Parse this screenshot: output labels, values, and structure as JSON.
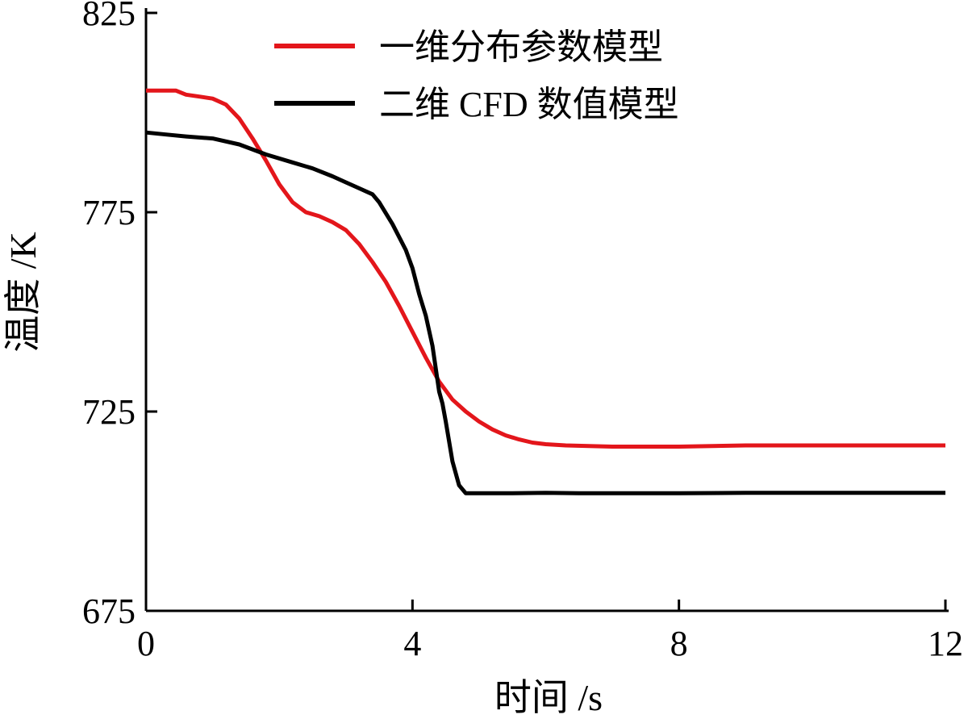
{
  "chart_data": {
    "type": "line",
    "title": "",
    "xlabel": "时间 /s",
    "ylabel": "温度 /K",
    "xlim": [
      0,
      12
    ],
    "ylim": [
      675,
      825
    ],
    "xticks": [
      "0",
      "4",
      "8",
      "12"
    ],
    "yticks": [
      "675",
      "725",
      "775",
      "825"
    ],
    "grid": false,
    "legend_position": "top-right",
    "series": [
      {
        "name": "一维分布参数模型",
        "color": "#e3161b",
        "x": [
          0,
          0.2,
          0.45,
          0.6,
          0.8,
          1.0,
          1.2,
          1.4,
          1.6,
          1.8,
          2.0,
          2.2,
          2.4,
          2.6,
          2.8,
          3.0,
          3.2,
          3.4,
          3.6,
          3.8,
          4.0,
          4.2,
          4.4,
          4.6,
          4.8,
          5.0,
          5.2,
          5.4,
          5.6,
          5.8,
          6.0,
          6.3,
          7.0,
          8.0,
          9.0,
          10.0,
          11.0,
          12.0
        ],
        "y": [
          805.5,
          805.5,
          805.5,
          804.5,
          804,
          803.5,
          802,
          798.5,
          793.5,
          788,
          782,
          777.5,
          775,
          774,
          772.5,
          770.5,
          767,
          762.5,
          757.5,
          751.5,
          745,
          738.5,
          732.5,
          728,
          725,
          722.5,
          720.5,
          719,
          718,
          717.2,
          716.8,
          716.5,
          716.2,
          716.2,
          716.5,
          716.5,
          716.5,
          716.5
        ]
      },
      {
        "name": "二维 CFD 数值模型",
        "color": "#000000",
        "x": [
          0,
          0.3,
          0.6,
          1.0,
          1.4,
          1.8,
          2.2,
          2.5,
          2.8,
          3.0,
          3.2,
          3.4,
          3.5,
          3.7,
          3.9,
          4.0,
          4.1,
          4.2,
          4.3,
          4.4,
          4.45,
          4.5,
          4.6,
          4.7,
          4.8,
          5.0,
          5.5,
          6.0,
          6.5,
          7.0,
          8.0,
          9.0,
          10.0,
          11.0,
          12.0
        ],
        "y": [
          795,
          794.5,
          794,
          793.5,
          792,
          789.5,
          787.5,
          786,
          784,
          782.5,
          781,
          779.5,
          777.5,
          772,
          765.5,
          761,
          754.5,
          749,
          741.5,
          730,
          727,
          722.5,
          712.5,
          706.5,
          704.5,
          704.5,
          704.5,
          704.6,
          704.5,
          704.5,
          704.5,
          704.6,
          704.6,
          704.6,
          704.6
        ]
      }
    ]
  }
}
